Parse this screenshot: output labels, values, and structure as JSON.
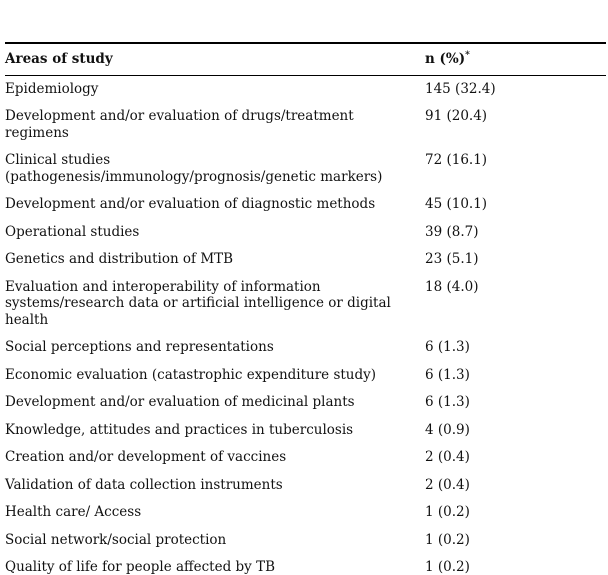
{
  "table": {
    "name": "areas-of-study-distribution",
    "header": {
      "areas_label": "Areas of study",
      "value_label": "n (%)",
      "value_superscript": "*"
    },
    "rows": [
      {
        "label": "Epidemiology",
        "value": "145 (32.4)"
      },
      {
        "label": "Development and/or evaluation of drugs/treatment\nregimens",
        "value": "91 (20.4)"
      },
      {
        "label": "Clinical studies\n(pathogenesis/immunology/prognosis/genetic markers)",
        "value": "72 (16.1)"
      },
      {
        "label": "Development and/or evaluation of diagnostic methods",
        "value": "45 (10.1)"
      },
      {
        "label": "Operational studies",
        "value": "39 (8.7)"
      },
      {
        "label": "Genetics and distribution of MTB",
        "value": "23 (5.1)"
      },
      {
        "label": "Evaluation and interoperability of information\nsystems/research data or artificial intelligence or digital\nhealth",
        "value": "18 (4.0)"
      },
      {
        "label": "Social perceptions and representations",
        "value": "6 (1.3)"
      },
      {
        "label": "Economic evaluation (catastrophic expenditure study)",
        "value": "6 (1.3)"
      },
      {
        "label": "Development and/or evaluation of medicinal plants",
        "value": "6 (1.3)"
      },
      {
        "label": "Knowledge, attitudes and practices in tuberculosis",
        "value": "4 (0.9)"
      },
      {
        "label": "Creation and/or development of vaccines",
        "value": "2 (0.4)"
      },
      {
        "label": "Validation of data collection instruments",
        "value": "2 (0.4)"
      },
      {
        "label": "Health care/ Access",
        "value": "1 (0.2)"
      },
      {
        "label": "Social network/social protection",
        "value": "1 (0.2)"
      },
      {
        "label": "Quality of life for people affected by TB",
        "value": "1 (0.2)"
      }
    ]
  }
}
